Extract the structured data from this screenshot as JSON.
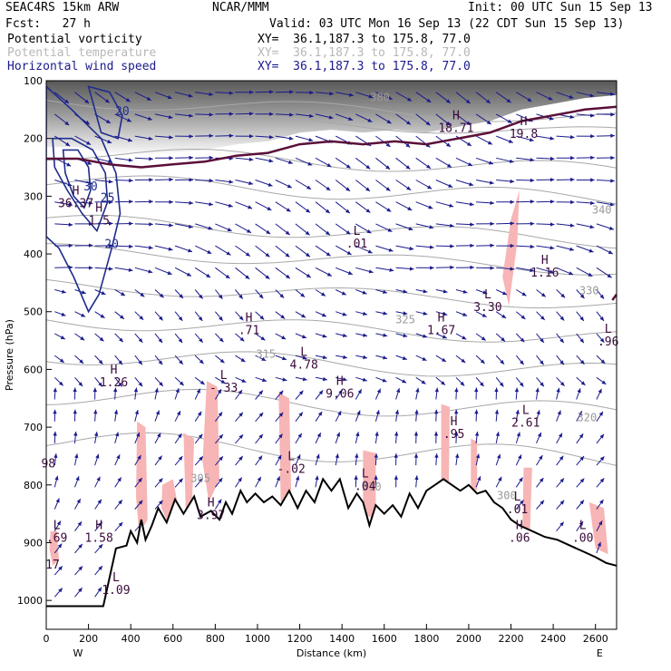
{
  "header": {
    "model": "SEAC4RS 15km ARW",
    "forecast": "Fcst:   27 h",
    "center": "NCAR/MMM",
    "init": "Init: 00 UTC Sun 15 Sep 13",
    "valid": "Valid: 03 UTC Mon 16 Sep 13 (22 CDT Sun 15 Sep 13)",
    "fields": [
      {
        "name": "Potential vorticity",
        "xy": "XY=  36.1,187.3 to 175.8, 77.0",
        "color": "#000000"
      },
      {
        "name": "Potential temperature",
        "xy": "XY=  36.1,187.3 to 175.8, 77.0",
        "color": "#b8b8b8"
      },
      {
        "name": "Horizontal wind speed",
        "xy": "XY=  36.1,187.3 to 175.8, 77.0",
        "color": "#1a1a8c"
      }
    ]
  },
  "chart_data": {
    "type": "cross-section",
    "xlabel": "Distance (km)",
    "ylabel": "Pressure (hPa)",
    "x_ticks": [
      0,
      200,
      400,
      600,
      800,
      1000,
      1200,
      1400,
      1600,
      1800,
      2000,
      2200,
      2400,
      2600
    ],
    "y_ticks": [
      100,
      200,
      300,
      400,
      500,
      600,
      700,
      800,
      900,
      1000
    ],
    "xlim": [
      0,
      2700
    ],
    "ylim": [
      1050,
      100
    ],
    "west_label": "W",
    "east_label": "E",
    "colors": {
      "wind_contour": "#1e2c8c",
      "theta_contour": "#a8a8a8",
      "pv_fill": "#f7b5b5",
      "pv_contour": "#5a0f38",
      "terrain": "#000000",
      "arrow": "#1a1a8c"
    },
    "terrain": [
      [
        0,
        1010
      ],
      [
        270,
        1010
      ],
      [
        330,
        910
      ],
      [
        380,
        905
      ],
      [
        400,
        880
      ],
      [
        430,
        900
      ],
      [
        450,
        860
      ],
      [
        470,
        895
      ],
      [
        500,
        870
      ],
      [
        530,
        840
      ],
      [
        570,
        865
      ],
      [
        610,
        825
      ],
      [
        650,
        850
      ],
      [
        700,
        820
      ],
      [
        730,
        855
      ],
      [
        780,
        845
      ],
      [
        820,
        860
      ],
      [
        850,
        830
      ],
      [
        880,
        850
      ],
      [
        920,
        810
      ],
      [
        950,
        830
      ],
      [
        990,
        815
      ],
      [
        1030,
        830
      ],
      [
        1070,
        820
      ],
      [
        1110,
        835
      ],
      [
        1150,
        810
      ],
      [
        1190,
        840
      ],
      [
        1230,
        810
      ],
      [
        1270,
        830
      ],
      [
        1310,
        790
      ],
      [
        1350,
        810
      ],
      [
        1390,
        790
      ],
      [
        1430,
        840
      ],
      [
        1470,
        815
      ],
      [
        1500,
        830
      ],
      [
        1530,
        870
      ],
      [
        1560,
        835
      ],
      [
        1600,
        850
      ],
      [
        1640,
        835
      ],
      [
        1680,
        855
      ],
      [
        1720,
        815
      ],
      [
        1760,
        840
      ],
      [
        1800,
        810
      ],
      [
        1840,
        800
      ],
      [
        1880,
        790
      ],
      [
        1920,
        800
      ],
      [
        1960,
        810
      ],
      [
        2000,
        800
      ],
      [
        2040,
        815
      ],
      [
        2080,
        810
      ],
      [
        2120,
        830
      ],
      [
        2160,
        840
      ],
      [
        2200,
        860
      ],
      [
        2240,
        870
      ],
      [
        2300,
        880
      ],
      [
        2360,
        890
      ],
      [
        2420,
        895
      ],
      [
        2480,
        905
      ],
      [
        2540,
        915
      ],
      [
        2600,
        925
      ],
      [
        2650,
        935
      ],
      [
        2700,
        940
      ]
    ],
    "pv_regions": [
      {
        "points": [
          [
            20,
            880
          ],
          [
            50,
            880
          ],
          [
            60,
            930
          ],
          [
            30,
            940
          ],
          [
            15,
            910
          ]
        ]
      },
      {
        "points": [
          [
            430,
            690
          ],
          [
            470,
            700
          ],
          [
            480,
            860
          ],
          [
            440,
            885
          ],
          [
            425,
            820
          ]
        ]
      },
      {
        "points": [
          [
            550,
            800
          ],
          [
            600,
            790
          ],
          [
            630,
            850
          ],
          [
            580,
            870
          ],
          [
            545,
            840
          ]
        ]
      },
      {
        "points": [
          [
            650,
            710
          ],
          [
            700,
            720
          ],
          [
            690,
            840
          ],
          [
            660,
            845
          ]
        ]
      },
      {
        "points": [
          [
            760,
            620
          ],
          [
            810,
            630
          ],
          [
            820,
            790
          ],
          [
            770,
            830
          ],
          [
            740,
            760
          ]
        ]
      },
      {
        "points": [
          [
            1100,
            640
          ],
          [
            1150,
            650
          ],
          [
            1160,
            820
          ],
          [
            1110,
            830
          ]
        ]
      },
      {
        "points": [
          [
            1500,
            740
          ],
          [
            1560,
            745
          ],
          [
            1560,
            860
          ],
          [
            1500,
            850
          ]
        ]
      },
      {
        "points": [
          [
            1870,
            660
          ],
          [
            1910,
            665
          ],
          [
            1905,
            820
          ],
          [
            1870,
            815
          ]
        ]
      },
      {
        "points": [
          [
            2010,
            720
          ],
          [
            2040,
            725
          ],
          [
            2040,
            810
          ],
          [
            2010,
            805
          ]
        ]
      },
      {
        "points": [
          [
            2160,
            440
          ],
          [
            2200,
            340
          ],
          [
            2240,
            290
          ],
          [
            2230,
            380
          ],
          [
            2190,
            490
          ]
        ]
      },
      {
        "points": [
          [
            2260,
            770
          ],
          [
            2300,
            770
          ],
          [
            2290,
            880
          ],
          [
            2255,
            870
          ]
        ]
      },
      {
        "points": [
          [
            2570,
            830
          ],
          [
            2640,
            840
          ],
          [
            2660,
            920
          ],
          [
            2600,
            910
          ]
        ]
      }
    ],
    "tropopause_pv": [
      [
        0,
        235
      ],
      [
        150,
        235
      ],
      [
        300,
        245
      ],
      [
        450,
        250
      ],
      [
        600,
        245
      ],
      [
        750,
        240
      ],
      [
        900,
        230
      ],
      [
        1050,
        225
      ],
      [
        1200,
        210
      ],
      [
        1350,
        205
      ],
      [
        1500,
        210
      ],
      [
        1650,
        205
      ],
      [
        1800,
        210
      ],
      [
        1950,
        200
      ],
      [
        2100,
        190
      ],
      [
        2250,
        170
      ],
      [
        2400,
        160
      ],
      [
        2550,
        150
      ],
      [
        2700,
        145
      ]
    ],
    "wind_contours": [
      {
        "label": "20",
        "points": [
          [
            0,
            110
          ],
          [
            120,
            150
          ],
          [
            260,
            200
          ],
          [
            330,
            260
          ],
          [
            350,
            330
          ],
          [
            310,
            390
          ],
          [
            250,
            470
          ],
          [
            200,
            500
          ],
          [
            130,
            440
          ],
          [
            60,
            390
          ],
          [
            0,
            370
          ]
        ]
      },
      {
        "label": "25",
        "points": [
          [
            30,
            200
          ],
          [
            120,
            200
          ],
          [
            220,
            220
          ],
          [
            280,
            260
          ],
          [
            290,
            310
          ],
          [
            240,
            360
          ],
          [
            170,
            330
          ],
          [
            100,
            290
          ],
          [
            40,
            250
          ]
        ]
      },
      {
        "label": "30",
        "points": [
          [
            80,
            220
          ],
          [
            150,
            220
          ],
          [
            200,
            250
          ],
          [
            210,
            290
          ],
          [
            180,
            320
          ],
          [
            130,
            300
          ],
          [
            90,
            260
          ]
        ]
      },
      {
        "label": "20",
        "points": [
          [
            200,
            110
          ],
          [
            300,
            120
          ],
          [
            360,
            160
          ],
          [
            340,
            200
          ],
          [
            260,
            190
          ]
        ]
      }
    ],
    "theta_labels": [
      {
        "label": "380",
        "x": 1580,
        "p": 135
      },
      {
        "label": "340",
        "x": 2630,
        "p": 330
      },
      {
        "label": "330",
        "x": 2570,
        "p": 470
      },
      {
        "label": "325",
        "x": 1700,
        "p": 520
      },
      {
        "label": "320",
        "x": 2560,
        "p": 690
      },
      {
        "label": "315",
        "x": 1040,
        "p": 580
      },
      {
        "label": "310",
        "x": 1540,
        "p": 810
      },
      {
        "label": "305",
        "x": 730,
        "p": 795
      },
      {
        "label": "300",
        "x": 2180,
        "p": 825
      }
    ],
    "theta_levels": [
      {
        "theta": 380,
        "base": 150,
        "amp": 12
      },
      {
        "theta": 360,
        "base": 175,
        "amp": 10
      },
      {
        "theta": 345,
        "base": 240,
        "amp": 14
      },
      {
        "theta": 340,
        "base": 290,
        "amp": 15
      },
      {
        "theta": 335,
        "base": 360,
        "amp": 14
      },
      {
        "theta": 330,
        "base": 410,
        "amp": 12
      },
      {
        "theta": 325,
        "base": 470,
        "amp": 12
      },
      {
        "theta": 320,
        "base": 530,
        "amp": 14
      },
      {
        "theta": 315,
        "base": 590,
        "amp": 16
      },
      {
        "theta": 310,
        "base": 660,
        "amp": 18
      },
      {
        "theta": 305,
        "base": 740,
        "amp": 20
      }
    ],
    "hl_labels": [
      {
        "letter": "H",
        "value": "18.71",
        "x": 1940,
        "p": 170
      },
      {
        "letter": "H",
        "value": "19.8",
        "x": 2260,
        "p": 180
      },
      {
        "letter": "H",
        "value": "36.37",
        "x": 140,
        "p": 300
      },
      {
        "letter": "H",
        "value": "1.5",
        "x": 250,
        "p": 330
      },
      {
        "letter": "L",
        "value": ".01",
        "x": 1470,
        "p": 370
      },
      {
        "letter": "H",
        "value": "1.16",
        "x": 2360,
        "p": 420
      },
      {
        "letter": "L",
        "value": "3.30",
        "x": 2090,
        "p": 480
      },
      {
        "letter": "H",
        "value": "1.67",
        "x": 1870,
        "p": 520
      },
      {
        "letter": "H",
        "value": ".71",
        "x": 960,
        "p": 520
      },
      {
        "letter": "L",
        "value": ".96",
        "x": 2660,
        "p": 540
      },
      {
        "letter": "L",
        "value": "4.78",
        "x": 1220,
        "p": 580
      },
      {
        "letter": "H",
        "value": "1.26",
        "x": 320,
        "p": 610
      },
      {
        "letter": "L",
        "value": "-.33",
        "x": 840,
        "p": 620
      },
      {
        "letter": "H",
        "value": "9.06",
        "x": 1390,
        "p": 630
      },
      {
        "letter": "L",
        "value": "2.61",
        "x": 2270,
        "p": 680
      },
      {
        "letter": "H",
        "value": ".95",
        "x": 1930,
        "p": 700
      },
      {
        "letter": "L",
        "value": "-.02",
        "x": 1160,
        "p": 760
      },
      {
        "letter": "L",
        "value": ".04",
        "x": 1510,
        "p": 790
      },
      {
        "letter": "H",
        "value": "3.97",
        "x": 780,
        "p": 840
      },
      {
        "letter": "L",
        "value": ".01",
        "x": 2230,
        "p": 830
      },
      {
        "letter": "H",
        "value": "1.58",
        "x": 250,
        "p": 880
      },
      {
        "letter": "L",
        "value": ".69",
        "x": 50,
        "p": 880
      },
      {
        "letter": "H",
        "value": ".06",
        "x": 2240,
        "p": 880
      },
      {
        "letter": "L",
        "value": ".00",
        "x": 2540,
        "p": 880
      },
      {
        "letter": "L",
        "value": "1.09",
        "x": 330,
        "p": 970
      }
    ],
    "side_labels": [
      {
        "value": "98",
        "x": 10,
        "p": 770
      },
      {
        "value": "17",
        "x": 30,
        "p": 945
      }
    ]
  }
}
